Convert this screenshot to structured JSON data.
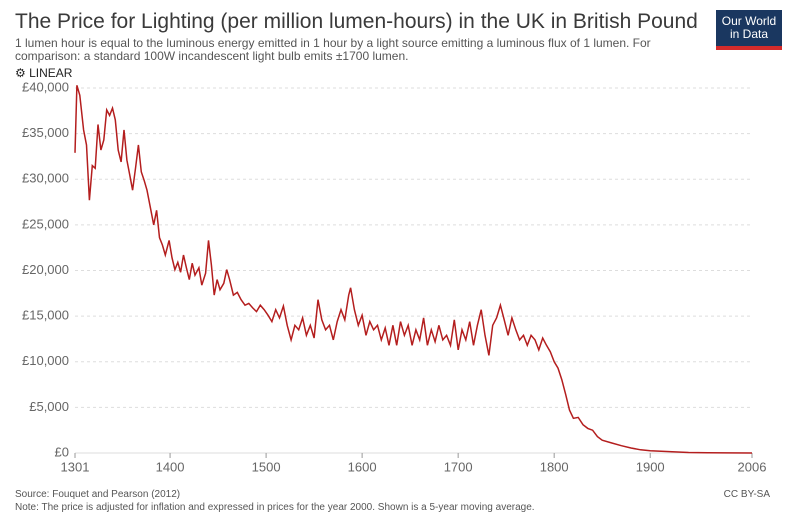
{
  "chart_data": {
    "type": "line",
    "title": "The Price for Lighting (per million lumen-hours) in the UK in British Pound",
    "subtitle": "1 lumen hour is equal to the luminous energy emitted in 1 hour by a light source emitting a luminous flux of 1 lumen. For comparison: a standard 100W incandescent light bulb emits ±1700 lumen.",
    "scale_toggle": "LINEAR",
    "logo": [
      "Our World",
      "in Data"
    ],
    "source": "Source: Fouquet and Pearson (2012)",
    "note": "Note: The price is adjusted for inflation and expressed in prices for the year 2000. Shown is a 5-year moving average.",
    "license": "CC BY-SA",
    "color": "#b41e1e",
    "grid": true,
    "xlim": [
      1301,
      2006
    ],
    "xticks": [
      1301,
      1400,
      1500,
      1600,
      1700,
      1800,
      1900,
      2006
    ],
    "ylim": [
      0,
      40000
    ],
    "yticks": [
      {
        "value": 0,
        "label": "£0"
      },
      {
        "value": 5000,
        "label": "£5,000"
      },
      {
        "value": 10000,
        "label": "£10,000"
      },
      {
        "value": 15000,
        "label": "£15,000"
      },
      {
        "value": 20000,
        "label": "£20,000"
      },
      {
        "value": 25000,
        "label": "£25,000"
      },
      {
        "value": 30000,
        "label": "£30,000"
      },
      {
        "value": 35000,
        "label": "£35,000"
      },
      {
        "value": 40000,
        "label": "£40,000"
      }
    ],
    "x": [
      1301,
      1303,
      1306,
      1310,
      1313,
      1316,
      1319,
      1322,
      1325,
      1328,
      1331,
      1334,
      1337,
      1340,
      1343,
      1346,
      1349,
      1352,
      1355,
      1358,
      1361,
      1364,
      1367,
      1370,
      1373,
      1376,
      1380,
      1383,
      1386,
      1389,
      1392,
      1395,
      1399,
      1402,
      1405,
      1408,
      1411,
      1414,
      1417,
      1420,
      1423,
      1426,
      1430,
      1433,
      1437,
      1440,
      1443,
      1446,
      1449,
      1452,
      1456,
      1459,
      1462,
      1466,
      1470,
      1474,
      1478,
      1482,
      1486,
      1490,
      1494,
      1498,
      1502,
      1506,
      1510,
      1514,
      1518,
      1522,
      1526,
      1530,
      1534,
      1538,
      1542,
      1546,
      1550,
      1554,
      1558,
      1562,
      1566,
      1570,
      1574,
      1578,
      1582,
      1586,
      1588,
      1592,
      1596,
      1600,
      1604,
      1608,
      1612,
      1616,
      1620,
      1624,
      1628,
      1632,
      1636,
      1640,
      1644,
      1648,
      1652,
      1656,
      1660,
      1664,
      1668,
      1672,
      1676,
      1680,
      1684,
      1688,
      1692,
      1696,
      1700,
      1704,
      1708,
      1712,
      1716,
      1720,
      1724,
      1728,
      1732,
      1736,
      1740,
      1744,
      1748,
      1752,
      1756,
      1760,
      1764,
      1768,
      1772,
      1776,
      1780,
      1784,
      1788,
      1792,
      1796,
      1800,
      1804,
      1808,
      1812,
      1816,
      1820,
      1825,
      1830,
      1835,
      1840,
      1845,
      1850,
      1860,
      1870,
      1880,
      1890,
      1900,
      1920,
      1940,
      1960,
      1980,
      2006
    ],
    "values": [
      32900,
      40300,
      39200,
      35400,
      33750,
      27700,
      31500,
      31200,
      36000,
      33200,
      34300,
      37600,
      37000,
      37800,
      36500,
      33200,
      31900,
      35400,
      32100,
      30500,
      28800,
      31200,
      33750,
      30800,
      29900,
      28800,
      26600,
      25000,
      26600,
      23600,
      22800,
      21700,
      23300,
      21400,
      20100,
      20900,
      19800,
      21700,
      20300,
      19000,
      20800,
      19500,
      20300,
      18400,
      19700,
      23300,
      20600,
      17300,
      19000,
      17900,
      18600,
      20100,
      19000,
      17300,
      17600,
      16800,
      16200,
      16400,
      15900,
      15500,
      16200,
      15700,
      15100,
      14400,
      15700,
      14800,
      16100,
      14000,
      12400,
      14000,
      13500,
      14800,
      12900,
      14000,
      12600,
      16800,
      14600,
      13500,
      14000,
      12400,
      14400,
      15700,
      14600,
      17300,
      18100,
      15700,
      14000,
      15100,
      12900,
      14400,
      13500,
      14000,
      12400,
      13700,
      11800,
      14000,
      11800,
      14400,
      12900,
      14000,
      11800,
      13500,
      12400,
      14800,
      11800,
      13500,
      12200,
      14000,
      12400,
      12900,
      11800,
      14600,
      11300,
      13500,
      12400,
      14400,
      11800,
      14000,
      15700,
      12900,
      10700,
      14000,
      14800,
      16200,
      14600,
      12900,
      14800,
      13500,
      12400,
      12900,
      11800,
      12900,
      12400,
      11300,
      12600,
      11800,
      11100,
      10000,
      9300,
      8000,
      6400,
      4700,
      3800,
      3900,
      3100,
      2700,
      2500,
      1800,
      1400,
      1100,
      800,
      550,
      350,
      250,
      150,
      60,
      20,
      10,
      5
    ]
  }
}
